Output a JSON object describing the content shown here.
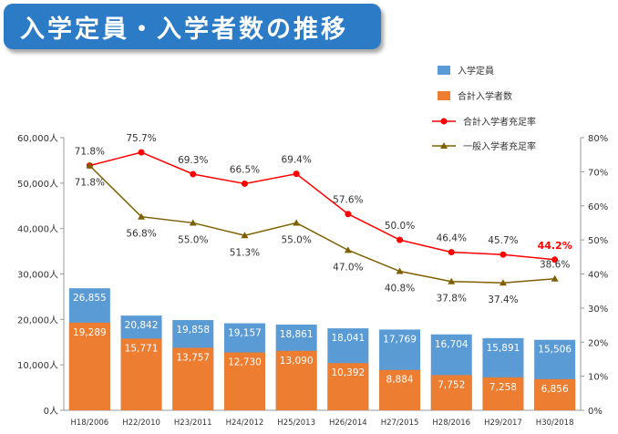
{
  "title": "入学定員・入学者数の推移",
  "colors": {
    "capacity": "#5b9bd5",
    "enrolled": "#ed7d31",
    "total_rate": "#ff0000",
    "general_rate": "#7f6000",
    "highlight": "#ff0000",
    "title_bg": "#2b7bc6"
  },
  "chart_data": {
    "type": "bar",
    "categories": [
      "H18/2006",
      "H22/2010",
      "H23/2011",
      "H24/2012",
      "H25/2013",
      "H26/2014",
      "H27/2015",
      "H28/2016",
      "H29/2017",
      "H30/2018"
    ],
    "y_left": {
      "ticks": [
        "0人",
        "10,000人",
        "20,000人",
        "30,000人",
        "40,000人",
        "50,000人",
        "60,000人"
      ],
      "range": [
        0,
        60000
      ]
    },
    "y_right": {
      "ticks": [
        "0%",
        "10%",
        "20%",
        "30%",
        "40%",
        "50%",
        "60%",
        "70%",
        "80%"
      ],
      "range": [
        0,
        80
      ]
    },
    "legend_position": "top-right",
    "series": [
      {
        "name": "入学定員",
        "type": "bar",
        "axis": "left",
        "values": [
          26855,
          20842,
          19858,
          19157,
          18861,
          18041,
          17769,
          16704,
          15891,
          15506
        ],
        "labels": [
          "26,855",
          "20,842",
          "19,858",
          "19,157",
          "18,861",
          "18,041",
          "17,769",
          "16,704",
          "15,891",
          "15,506"
        ]
      },
      {
        "name": "合計入学者数",
        "type": "bar",
        "axis": "left",
        "values": [
          19289,
          15771,
          13757,
          12730,
          13090,
          10392,
          8884,
          7752,
          7258,
          6856
        ],
        "labels": [
          "19,289",
          "15,771",
          "13,757",
          "12,730",
          "13,090",
          "10,392",
          "8,884",
          "7,752",
          "7,258",
          "6,856"
        ]
      },
      {
        "name": "合計入学者充足率",
        "type": "line",
        "axis": "right",
        "values": [
          71.8,
          75.7,
          69.3,
          66.5,
          69.4,
          57.6,
          50.0,
          46.4,
          45.7,
          44.2
        ],
        "labels": [
          "71.8%",
          "75.7%",
          "69.3%",
          "66.5%",
          "69.4%",
          "57.6%",
          "50.0%",
          "46.4%",
          "45.7%",
          "44.2%"
        ]
      },
      {
        "name": "一般入学者充足率",
        "type": "line",
        "axis": "right",
        "values": [
          71.8,
          56.8,
          55.0,
          51.3,
          55.0,
          47.0,
          40.8,
          37.8,
          37.4,
          38.6
        ],
        "labels": [
          "71.8%",
          "56.8%",
          "55.0%",
          "51.3%",
          "55.0%",
          "47.0%",
          "40.8%",
          "37.8%",
          "37.4%",
          "38.6%"
        ]
      }
    ]
  }
}
